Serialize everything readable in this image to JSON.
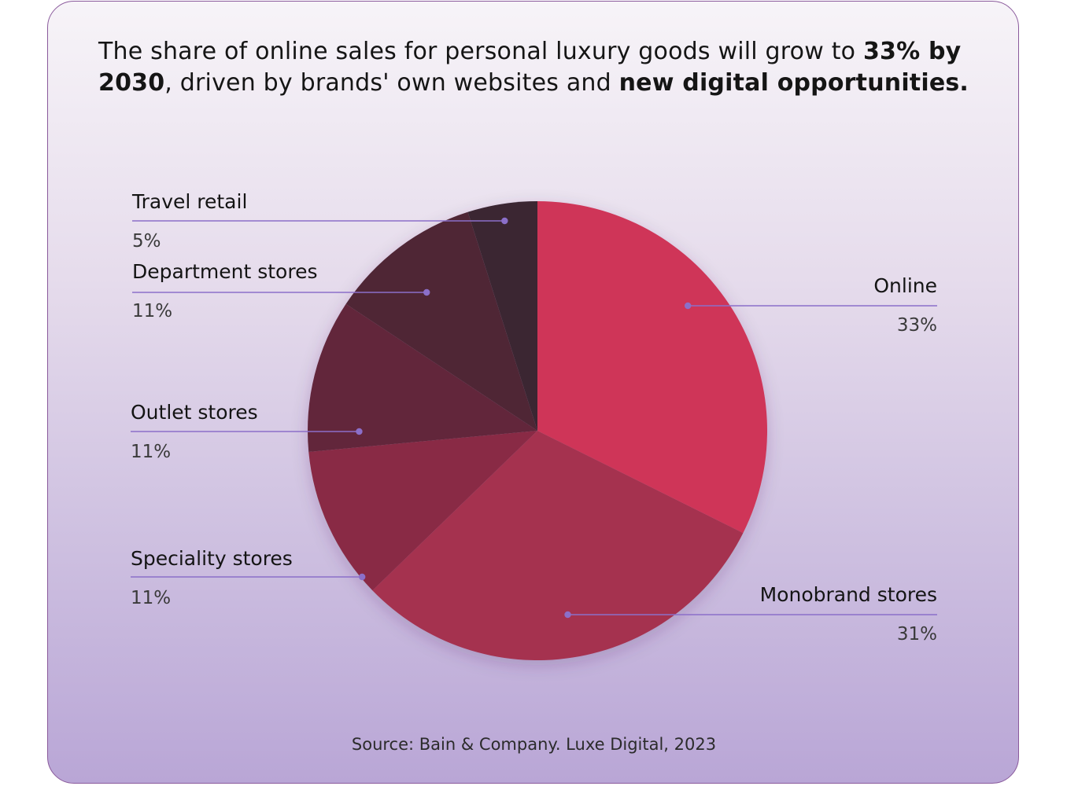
{
  "headline": {
    "part1": "The share of online sales for personal luxury goods will grow to ",
    "bold1": "33% by 2030",
    "part2": ", driven by brands' own websites and ",
    "bold2": "new digital opportunities."
  },
  "chart_data": {
    "type": "pie",
    "title": "The share of online sales for personal luxury goods will grow to 33% by 2030",
    "unit": "%",
    "slices": [
      {
        "name": "Online",
        "value": 33,
        "label": "33%",
        "color": "#cf3558",
        "side": "right"
      },
      {
        "name": "Monobrand stores",
        "value": 31,
        "label": "31%",
        "color": "#a5304f",
        "side": "right"
      },
      {
        "name": "Speciality stores",
        "value": 11,
        "label": "11%",
        "color": "#892a45",
        "side": "left"
      },
      {
        "name": "Outlet stores",
        "value": 11,
        "label": "11%",
        "color": "#62253b",
        "side": "left"
      },
      {
        "name": "Department stores",
        "value": 11,
        "label": "11%",
        "color": "#4f2536",
        "side": "left"
      },
      {
        "name": "Travel retail",
        "value": 5,
        "label": "5%",
        "color": "#3b2533",
        "side": "left"
      }
    ],
    "start": "top",
    "direction": "clockwise",
    "leader_color": "#8b6fc9"
  },
  "source": "Source: Bain & Company. Luxe Digital, 2023"
}
